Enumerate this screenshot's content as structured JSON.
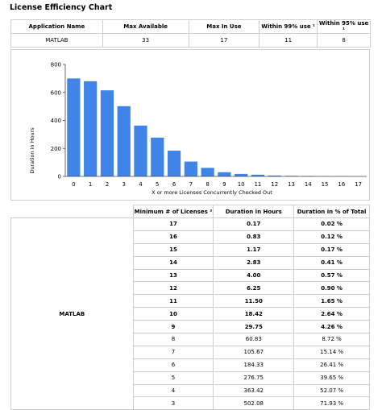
{
  "page_title": "License Efficiency Chart",
  "summary": {
    "headers": [
      "Application Name",
      "Max Available",
      "Max In Use",
      "Within 99% use ¹",
      "Within 95% use ¹"
    ],
    "row": [
      "MATLAB",
      "33",
      "17",
      "11",
      "8"
    ]
  },
  "chart_data": {
    "type": "bar",
    "categories": [
      "0",
      "1",
      "2",
      "3",
      "4",
      "5",
      "6",
      "7",
      "8",
      "9",
      "10",
      "11",
      "12",
      "13",
      "14",
      "15",
      "16",
      "17"
    ],
    "values": [
      700,
      680,
      615,
      502,
      363,
      277,
      184,
      106,
      61,
      30,
      18,
      12,
      6,
      4,
      3,
      1,
      1,
      0
    ],
    "xlabel": "X or more Licenses Concurrently Checked Out",
    "ylabel": "Duration in Hours",
    "ylim": [
      0,
      800
    ],
    "yticks": [
      "0",
      "200",
      "400",
      "600",
      "800"
    ],
    "bar_color": "#3f84e6",
    "grid": false,
    "legend": "none"
  },
  "details": {
    "app_name": "MATLAB",
    "headers": [
      "Minimum # of Licenses ²",
      "Duration in Hours",
      "Duration in % of Total"
    ],
    "rows": [
      {
        "min": "17",
        "hours": "0.17",
        "pct": "0.02 %",
        "bold": true
      },
      {
        "min": "16",
        "hours": "0.83",
        "pct": "0.12 %",
        "bold": true
      },
      {
        "min": "15",
        "hours": "1.17",
        "pct": "0.17 %",
        "bold": true
      },
      {
        "min": "14",
        "hours": "2.83",
        "pct": "0.41 %",
        "bold": true
      },
      {
        "min": "13",
        "hours": "4.00",
        "pct": "0.57 %",
        "bold": true
      },
      {
        "min": "12",
        "hours": "6.25",
        "pct": "0.90 %",
        "bold": true
      },
      {
        "min": "11",
        "hours": "11.50",
        "pct": "1.65 %",
        "bold": true
      },
      {
        "min": "10",
        "hours": "18.42",
        "pct": "2.64 %",
        "bold": true
      },
      {
        "min": "9",
        "hours": "29.75",
        "pct": "4.26 %",
        "bold": true
      },
      {
        "min": "8",
        "hours": "60.83",
        "pct": "8.72 %",
        "bold": false
      },
      {
        "min": "7",
        "hours": "105.67",
        "pct": "15.14 %",
        "bold": false
      },
      {
        "min": "6",
        "hours": "184.33",
        "pct": "26.41 %",
        "bold": false
      },
      {
        "min": "5",
        "hours": "276.75",
        "pct": "39.65 %",
        "bold": false
      },
      {
        "min": "4",
        "hours": "363.42",
        "pct": "52.07 %",
        "bold": false
      },
      {
        "min": "3",
        "hours": "502.08",
        "pct": "71.93 %",
        "bold": false
      }
    ]
  }
}
